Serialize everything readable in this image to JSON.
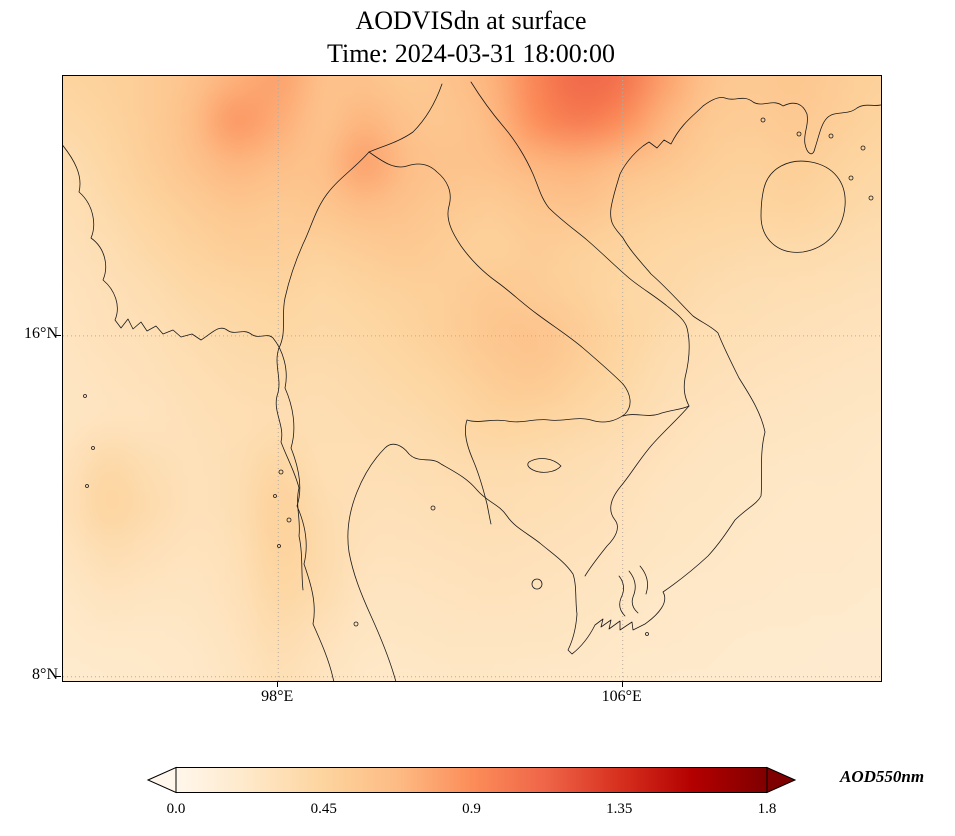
{
  "chart_data": {
    "type": "heatmap",
    "title": "AODVISdn at surface",
    "subtitle": "Time: 2024-03-31 18:00:00",
    "variable": "AODVISdn",
    "time": "2024-03-31 18:00:00",
    "colorbar": {
      "label": "AOD550nm",
      "ticks": [
        0.0,
        0.45,
        0.9,
        1.35,
        1.8
      ],
      "tick_labels": [
        "0.0",
        "0.45",
        "0.9",
        "1.35",
        "1.8"
      ],
      "extend": "both"
    },
    "value_range": [
      0.0,
      1.8
    ],
    "extent": {
      "lon_min": 93.0,
      "lon_max": 112.0,
      "lat_min": 7.9,
      "lat_max": 22.1
    },
    "lat_gridlines": [
      16,
      8
    ],
    "lon_gridlines": [
      98,
      106
    ],
    "lat_tick_labels": [
      "16°N",
      "8°N"
    ],
    "lon_tick_labels": [
      "98°E",
      "106°E"
    ],
    "grid_style": "dotted",
    "colormap": {
      "name": "OrRd",
      "stops": [
        {
          "pos": 0.0,
          "color": "#fff7ec"
        },
        {
          "pos": 0.125,
          "color": "#fee8c8"
        },
        {
          "pos": 0.25,
          "color": "#fdd49e"
        },
        {
          "pos": 0.375,
          "color": "#fdbb84"
        },
        {
          "pos": 0.5,
          "color": "#fc8d59"
        },
        {
          "pos": 0.625,
          "color": "#ef6548"
        },
        {
          "pos": 0.75,
          "color": "#d7301f"
        },
        {
          "pos": 0.875,
          "color": "#b30000"
        },
        {
          "pos": 1.0,
          "color": "#7f0000"
        }
      ]
    },
    "grid": {
      "lon_start": 93.0,
      "lon_step": 1.0,
      "lat_start": 22.0,
      "lat_step": -1.0,
      "values": [
        [
          0.45,
          0.48,
          0.52,
          0.6,
          0.72,
          0.8,
          0.62,
          0.6,
          0.55,
          0.6,
          0.72,
          0.95,
          1.1,
          1.05,
          0.8,
          0.6,
          0.55,
          0.58,
          0.52,
          0.48
        ],
        [
          0.4,
          0.45,
          0.52,
          0.65,
          0.85,
          0.75,
          0.6,
          0.7,
          0.6,
          0.58,
          0.68,
          0.9,
          1.0,
          0.9,
          0.7,
          0.55,
          0.52,
          0.55,
          0.5,
          0.45
        ],
        [
          0.35,
          0.42,
          0.5,
          0.6,
          0.7,
          0.65,
          0.62,
          0.8,
          0.65,
          0.6,
          0.62,
          0.7,
          0.72,
          0.65,
          0.58,
          0.5,
          0.48,
          0.5,
          0.46,
          0.42
        ],
        [
          0.32,
          0.38,
          0.45,
          0.52,
          0.58,
          0.55,
          0.58,
          0.65,
          0.6,
          0.55,
          0.52,
          0.58,
          0.6,
          0.52,
          0.48,
          0.45,
          0.44,
          0.46,
          0.42,
          0.38
        ],
        [
          0.3,
          0.34,
          0.4,
          0.46,
          0.5,
          0.5,
          0.48,
          0.52,
          0.55,
          0.5,
          0.48,
          0.52,
          0.48,
          0.45,
          0.42,
          0.4,
          0.38,
          0.38,
          0.36,
          0.34
        ],
        [
          0.28,
          0.31,
          0.35,
          0.4,
          0.43,
          0.45,
          0.42,
          0.45,
          0.48,
          0.5,
          0.55,
          0.52,
          0.48,
          0.42,
          0.4,
          0.36,
          0.34,
          0.33,
          0.32,
          0.3
        ],
        [
          0.27,
          0.3,
          0.32,
          0.36,
          0.39,
          0.41,
          0.39,
          0.41,
          0.45,
          0.5,
          0.58,
          0.6,
          0.52,
          0.44,
          0.37,
          0.33,
          0.32,
          0.3,
          0.29,
          0.28
        ],
        [
          0.26,
          0.28,
          0.3,
          0.33,
          0.36,
          0.37,
          0.36,
          0.38,
          0.41,
          0.45,
          0.52,
          0.55,
          0.48,
          0.41,
          0.34,
          0.31,
          0.29,
          0.28,
          0.27,
          0.26
        ],
        [
          0.25,
          0.28,
          0.28,
          0.31,
          0.33,
          0.35,
          0.34,
          0.36,
          0.37,
          0.4,
          0.45,
          0.44,
          0.4,
          0.36,
          0.31,
          0.28,
          0.27,
          0.26,
          0.25,
          0.24
        ],
        [
          0.28,
          0.4,
          0.34,
          0.3,
          0.34,
          0.42,
          0.33,
          0.33,
          0.34,
          0.36,
          0.37,
          0.36,
          0.34,
          0.31,
          0.28,
          0.26,
          0.25,
          0.24,
          0.24,
          0.23
        ],
        [
          0.3,
          0.44,
          0.37,
          0.3,
          0.34,
          0.48,
          0.36,
          0.31,
          0.31,
          0.33,
          0.34,
          0.33,
          0.31,
          0.29,
          0.26,
          0.25,
          0.24,
          0.23,
          0.23,
          0.22
        ],
        [
          0.26,
          0.35,
          0.31,
          0.28,
          0.32,
          0.46,
          0.38,
          0.29,
          0.29,
          0.3,
          0.31,
          0.3,
          0.29,
          0.27,
          0.25,
          0.24,
          0.23,
          0.22,
          0.22,
          0.21
        ],
        [
          0.23,
          0.28,
          0.26,
          0.26,
          0.3,
          0.42,
          0.36,
          0.27,
          0.27,
          0.28,
          0.29,
          0.28,
          0.27,
          0.25,
          0.23,
          0.22,
          0.22,
          0.21,
          0.21,
          0.2
        ],
        [
          0.21,
          0.23,
          0.23,
          0.24,
          0.28,
          0.36,
          0.3,
          0.25,
          0.25,
          0.26,
          0.26,
          0.26,
          0.25,
          0.23,
          0.22,
          0.21,
          0.2,
          0.2,
          0.19,
          0.19
        ],
        [
          0.19,
          0.2,
          0.21,
          0.22,
          0.26,
          0.32,
          0.27,
          0.23,
          0.23,
          0.24,
          0.24,
          0.23,
          0.22,
          0.21,
          0.2,
          0.2,
          0.19,
          0.19,
          0.18,
          0.18
        ]
      ]
    }
  }
}
